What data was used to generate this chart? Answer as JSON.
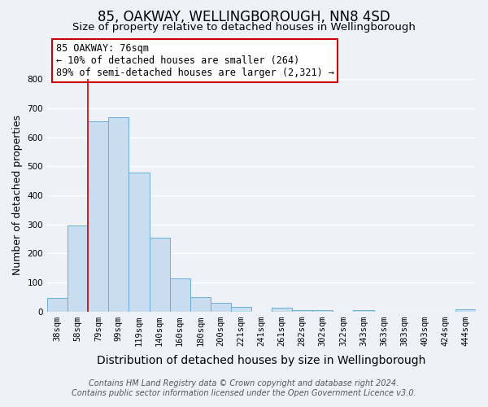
{
  "title": "85, OAKWAY, WELLINGBOROUGH, NN8 4SD",
  "subtitle": "Size of property relative to detached houses in Wellingborough",
  "xlabel": "Distribution of detached houses by size in Wellingborough",
  "ylabel": "Number of detached properties",
  "bar_labels": [
    "38sqm",
    "58sqm",
    "79sqm",
    "99sqm",
    "119sqm",
    "140sqm",
    "160sqm",
    "180sqm",
    "200sqm",
    "221sqm",
    "241sqm",
    "261sqm",
    "282sqm",
    "302sqm",
    "322sqm",
    "343sqm",
    "363sqm",
    "383sqm",
    "403sqm",
    "424sqm",
    "444sqm"
  ],
  "bar_values": [
    47,
    295,
    655,
    668,
    479,
    254,
    113,
    49,
    29,
    15,
    0,
    12,
    5,
    5,
    0,
    5,
    0,
    0,
    0,
    0,
    7
  ],
  "bar_color": "#c8ddf0",
  "bar_edge_color": "#6aaed6",
  "vline_x_index": 2,
  "vline_color": "#cc0000",
  "annotation_line1": "85 OAKWAY: 76sqm",
  "annotation_line2": "← 10% of detached houses are smaller (264)",
  "annotation_line3": "89% of semi-detached houses are larger (2,321) →",
  "annotation_box_color": "#ffffff",
  "annotation_box_edge": "#cc0000",
  "ylim": [
    0,
    800
  ],
  "yticks": [
    0,
    100,
    200,
    300,
    400,
    500,
    600,
    700,
    800
  ],
  "footer_line1": "Contains HM Land Registry data © Crown copyright and database right 2024.",
  "footer_line2": "Contains public sector information licensed under the Open Government Licence v3.0.",
  "bg_color": "#eef2f8",
  "grid_color": "#ffffff",
  "title_fontsize": 12,
  "subtitle_fontsize": 9.5,
  "xlabel_fontsize": 10,
  "ylabel_fontsize": 9,
  "tick_fontsize": 7.5,
  "footer_fontsize": 7,
  "annotation_fontsize": 8.5
}
